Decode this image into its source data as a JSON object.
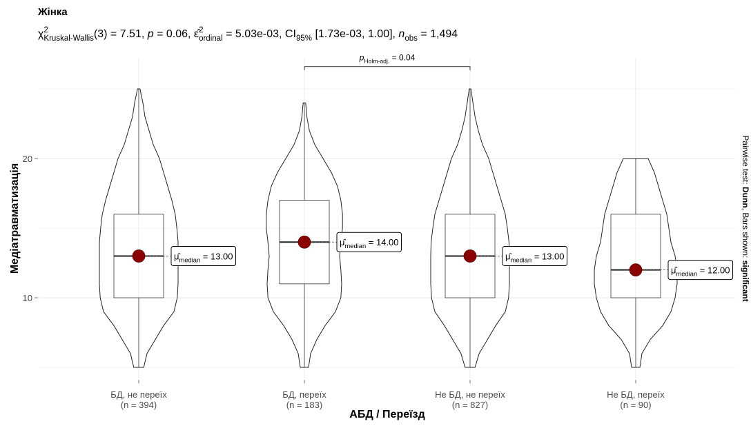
{
  "chart_data": {
    "type": "violin-box",
    "title": "Жінка",
    "subtitle": [
      {
        "t": "χ"
      },
      {
        "sup": "2",
        "sub": "Kruskal-Wallis"
      },
      {
        "t": "(3) = 7.51, "
      },
      {
        "t": "p",
        "i": true
      },
      {
        "t": " = 0.06, "
      },
      {
        "t": "ε̂"
      },
      {
        "sup": "2",
        "sub": "ordinal"
      },
      {
        "t": " = 5.03e-03, CI"
      },
      {
        "sub": "95%"
      },
      {
        "t": " [1.73e-03, 1.00], "
      },
      {
        "t": "n",
        "i": true
      },
      {
        "sub": "obs"
      },
      {
        "t": " = 1,494"
      }
    ],
    "x_label": "АБД / Переїзд",
    "y_label": "Медіатравматизація",
    "caption": [
      {
        "t": "Pairwise test: "
      },
      {
        "t": "Dunn",
        "b": true
      },
      {
        "t": ", Bars shown: "
      },
      {
        "t": "significant",
        "b": true
      }
    ],
    "categories": [
      "БД, не переїх",
      "БД, переїх",
      "Не БД, не переїх",
      "Не БД, переїх"
    ],
    "n_labels": [
      "(n = 394)",
      "(n = 183)",
      "(n = 827)",
      "(n = 90)"
    ],
    "ylim": [
      4.2,
      27.2
    ],
    "yticks": [
      10,
      20
    ],
    "minor_yticks": [
      5,
      15,
      25
    ],
    "grid": true,
    "point_color": "#8B0000",
    "median_label_prefix": [
      {
        "t": "μ̂"
      },
      {
        "sub": "median"
      },
      {
        "t": " = "
      }
    ],
    "density_y": [
      5,
      6,
      7,
      8,
      9,
      10,
      11,
      12,
      13,
      14,
      15,
      16,
      17,
      18,
      19,
      20,
      21,
      22,
      23,
      24,
      25
    ],
    "groups": [
      {
        "whisker_low": 5,
        "q1": 10,
        "median": 13,
        "q3": 16,
        "whisker_high": 25,
        "median_label": "13.00",
        "density": [
          0.12,
          0.2,
          0.4,
          0.6,
          0.85,
          0.93,
          0.95,
          0.95,
          0.95,
          0.95,
          0.92,
          0.88,
          0.8,
          0.7,
          0.6,
          0.5,
          0.35,
          0.25,
          0.15,
          0.1,
          0.03
        ]
      },
      {
        "whisker_low": 5,
        "q1": 11,
        "median": 14,
        "q3": 17,
        "whisker_high": 24,
        "median_label": "14.00",
        "density": [
          0.1,
          0.15,
          0.3,
          0.5,
          0.75,
          0.88,
          0.9,
          0.88,
          0.85,
          0.88,
          0.92,
          0.92,
          0.88,
          0.8,
          0.65,
          0.45,
          0.25,
          0.12,
          0.06,
          0.03,
          null
        ]
      },
      {
        "whisker_low": 5,
        "q1": 10,
        "median": 13,
        "q3": 16,
        "whisker_high": 25,
        "median_label": "13.00",
        "density": [
          0.12,
          0.22,
          0.42,
          0.62,
          0.85,
          0.93,
          0.95,
          0.95,
          0.95,
          0.94,
          0.9,
          0.85,
          0.75,
          0.65,
          0.55,
          0.45,
          0.3,
          0.2,
          0.12,
          0.07,
          0.02
        ]
      },
      {
        "whisker_low": 5,
        "q1": 10,
        "median": 12,
        "q3": 16,
        "whisker_high": 20,
        "median_label": "12.00",
        "density": [
          0.1,
          0.15,
          0.35,
          0.65,
          0.85,
          0.95,
          1.0,
          1.0,
          0.95,
          0.85,
          0.8,
          0.75,
          0.65,
          0.55,
          0.45,
          0.3,
          null,
          null,
          null,
          null,
          null
        ]
      }
    ],
    "comparisons": [
      {
        "groups": [
          1,
          2
        ],
        "y": 26.6,
        "label": [
          {
            "t": "p",
            "i": true
          },
          {
            "sub": "Holm-adj."
          },
          {
            "t": " = 0.04"
          }
        ]
      }
    ]
  }
}
